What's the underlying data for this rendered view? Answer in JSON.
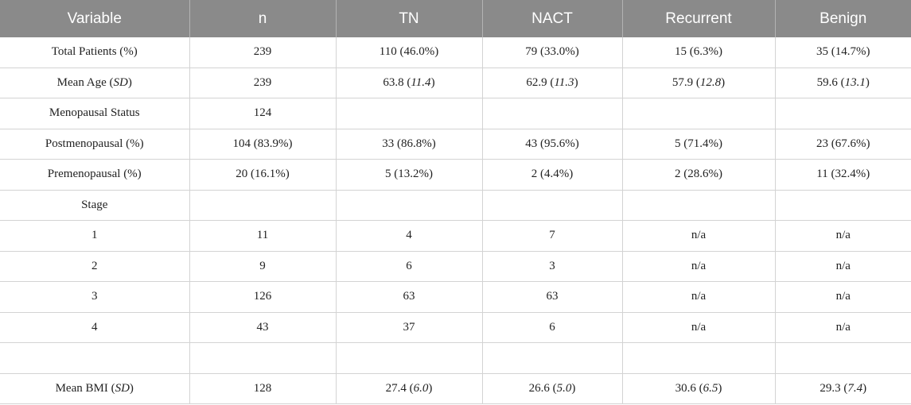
{
  "table": {
    "headers": [
      "Variable",
      "n",
      "TN",
      "NACT",
      "Recurrent",
      "Benign"
    ],
    "rows": [
      {
        "label": "Total Patients (%)",
        "cells": [
          {
            "v": "239"
          },
          {
            "v": "110 (46.0%)"
          },
          {
            "v": "79 (33.0%)"
          },
          {
            "v": "15 (6.3%)"
          },
          {
            "v": "35 (14.7%)"
          }
        ]
      },
      {
        "label": "Mean Age (",
        "label_italic": "SD",
        "label_tail": ")",
        "cells": [
          {
            "v": "239"
          },
          {
            "v": "63.8 (",
            "i": "11.4",
            "t": ")"
          },
          {
            "v": "62.9 (",
            "i": "11.3",
            "t": ")"
          },
          {
            "v": "57.9 (",
            "i": "12.8",
            "t": ")"
          },
          {
            "v": "59.6 (",
            "i": "13.1",
            "t": ")"
          }
        ]
      },
      {
        "label": "Menopausal Status",
        "cells": [
          {
            "v": "124"
          },
          {
            "v": ""
          },
          {
            "v": ""
          },
          {
            "v": ""
          },
          {
            "v": ""
          }
        ]
      },
      {
        "label": "Postmenopausal (%)",
        "cells": [
          {
            "v": "104 (83.9%)"
          },
          {
            "v": "33 (86.8%)"
          },
          {
            "v": "43 (95.6%)"
          },
          {
            "v": "5 (71.4%)"
          },
          {
            "v": "23 (67.6%)"
          }
        ]
      },
      {
        "label": "Premenopausal (%)",
        "cells": [
          {
            "v": "20 (16.1%)"
          },
          {
            "v": "5 (13.2%)"
          },
          {
            "v": "2 (4.4%)"
          },
          {
            "v": "2 (28.6%)"
          },
          {
            "v": "11 (32.4%)"
          }
        ]
      },
      {
        "label": "Stage",
        "cells": [
          {
            "v": ""
          },
          {
            "v": ""
          },
          {
            "v": ""
          },
          {
            "v": ""
          },
          {
            "v": ""
          }
        ]
      },
      {
        "label": "1",
        "cells": [
          {
            "v": "11"
          },
          {
            "v": "4"
          },
          {
            "v": "7"
          },
          {
            "v": "n/a"
          },
          {
            "v": "n/a"
          }
        ]
      },
      {
        "label": "2",
        "cells": [
          {
            "v": "9"
          },
          {
            "v": "6"
          },
          {
            "v": "3"
          },
          {
            "v": "n/a"
          },
          {
            "v": "n/a"
          }
        ]
      },
      {
        "label": "3",
        "cells": [
          {
            "v": "126"
          },
          {
            "v": "63"
          },
          {
            "v": "63"
          },
          {
            "v": "n/a"
          },
          {
            "v": "n/a"
          }
        ]
      },
      {
        "label": "4",
        "cells": [
          {
            "v": "43"
          },
          {
            "v": "37"
          },
          {
            "v": "6"
          },
          {
            "v": "n/a"
          },
          {
            "v": "n/a"
          }
        ]
      },
      {
        "label": "",
        "cells": [
          {
            "v": ""
          },
          {
            "v": ""
          },
          {
            "v": ""
          },
          {
            "v": ""
          },
          {
            "v": ""
          }
        ]
      },
      {
        "label": "Mean BMI (",
        "label_italic": "SD",
        "label_tail": ")",
        "cells": [
          {
            "v": "128"
          },
          {
            "v": "27.4 (",
            "i": "6.0",
            "t": ")"
          },
          {
            "v": "26.6 (",
            "i": "5.0",
            "t": ")"
          },
          {
            "v": "30.6 (",
            "i": "6.5",
            "t": ")"
          },
          {
            "v": "29.3 (",
            "i": "7.4",
            "t": ")"
          }
        ]
      }
    ]
  },
  "colors": {
    "header_bg": "#8a8a8a",
    "header_text": "#ffffff",
    "grid": "#d3d3d3"
  }
}
